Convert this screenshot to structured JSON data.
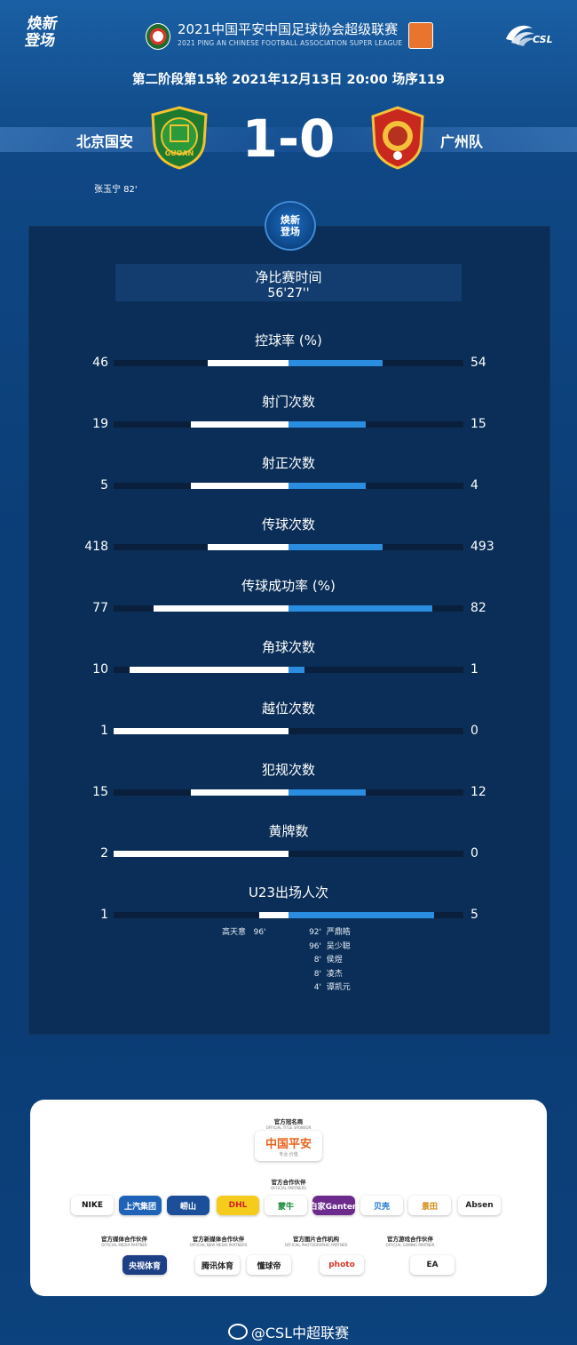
{
  "header": {
    "brand_line1": "焕新",
    "brand_line2": "登场",
    "title": "2021中国平安中国足球协会超级联赛",
    "subtitle": "2021 PING AN CHINESE FOOTBALL ASSOCIATION SUPER LEAGUE",
    "csl_label": "CSL"
  },
  "match": {
    "info": "第二阶段第15轮  2021年12月13日 20:00  场序119",
    "home_team": "北京国安",
    "away_team": "广州队",
    "score": "1-0",
    "home_crest_text": "GUOAN",
    "home_scorer": "张玉宁  82'"
  },
  "panel": {
    "emblem_line1": "焕新",
    "emblem_line2": "登场",
    "net_time_label": "净比赛时间",
    "net_time_value": "56'27''"
  },
  "stats": [
    {
      "label": "控球率 (%)",
      "home": "46",
      "away": "54",
      "home_frac": 0.46,
      "away_frac": 0.54
    },
    {
      "label": "射门次数",
      "home": "19",
      "away": "15",
      "home_frac": 0.56,
      "away_frac": 0.44
    },
    {
      "label": "射正次数",
      "home": "5",
      "away": "4",
      "home_frac": 0.56,
      "away_frac": 0.44
    },
    {
      "label": "传球次数",
      "home": "418",
      "away": "493",
      "home_frac": 0.46,
      "away_frac": 0.54
    },
    {
      "label": "传球成功率 (%)",
      "home": "77",
      "away": "82",
      "home_frac": 0.77,
      "away_frac": 0.82
    },
    {
      "label": "角球次数",
      "home": "10",
      "away": "1",
      "home_frac": 0.91,
      "away_frac": 0.09
    },
    {
      "label": "越位次数",
      "home": "1",
      "away": "0",
      "home_frac": 1.0,
      "away_frac": 0.0
    },
    {
      "label": "犯规次数",
      "home": "15",
      "away": "12",
      "home_frac": 0.56,
      "away_frac": 0.44
    },
    {
      "label": "黄牌数",
      "home": "2",
      "away": "0",
      "home_frac": 1.0,
      "away_frac": 0.0
    },
    {
      "label": "U23出场人次",
      "home": "1",
      "away": "5",
      "home_frac": 0.17,
      "away_frac": 0.83
    }
  ],
  "u23": {
    "home": [
      {
        "name": "高天意",
        "minute": "96'"
      }
    ],
    "away": [
      {
        "minute": "92'",
        "name": "严鼎皓"
      },
      {
        "minute": "96'",
        "name": "吴少聪"
      },
      {
        "minute": "8'",
        "name": "侯煜"
      },
      {
        "minute": "8'",
        "name": "凌杰"
      },
      {
        "minute": "4'",
        "name": "谭凯元"
      }
    ]
  },
  "sponsors": {
    "title_sponsor_cap": "官方冠名商",
    "title_sponsor_cap_en": "OFFICIAL TITLE SPONSOR",
    "title_sponsor": "中国平安",
    "title_sponsor_slogan": "专业·价值",
    "partners_cap": "官方合作伙伴",
    "partners_cap_en": "OFFICIAL PARTNERS",
    "partners": [
      "NIKE",
      "上汽集团",
      "崂山",
      "DHL",
      "蒙牛",
      "白家Ganten",
      "贝壳",
      "景田",
      "Absen"
    ],
    "groups": [
      {
        "cap": "官方媒体合作伙伴",
        "cap_en": "OFFICIAL MEDIA PARTNER",
        "logos": [
          "央视体育"
        ]
      },
      {
        "cap": "官方新媒体合作伙伴",
        "cap_en": "OFFICIAL NEW MEDIA PARTNERS",
        "logos": [
          "腾讯体育",
          "懂球帝"
        ]
      },
      {
        "cap": "官方图片合作机构",
        "cap_en": "OFFICIAL PHOTOGRAPHIC PARTNER",
        "logos": [
          "photo"
        ]
      },
      {
        "cap": "官方游戏合作伙伴",
        "cap_en": "OFFICIAL GAMING PARTNER",
        "logos": [
          "EA"
        ]
      }
    ]
  },
  "footer": {
    "text": "@CSL中超联赛"
  },
  "colors": {
    "home_bar": "#ffffff",
    "away_bar": "#2a8de0",
    "panel": "#0a2e57"
  }
}
